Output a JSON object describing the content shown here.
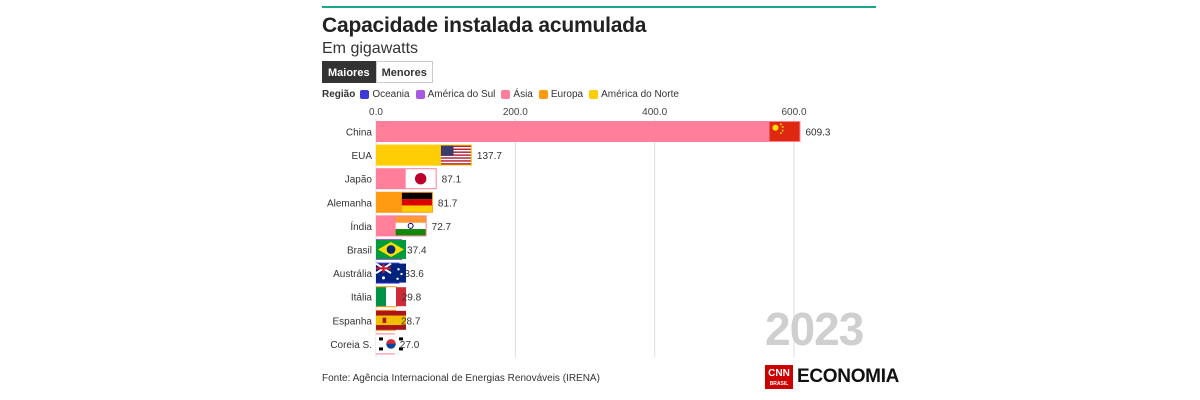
{
  "title": "Capacidade instalada acumulada",
  "subtitle": "Em gigawatts",
  "tabs": [
    {
      "label": "Maiores",
      "active": true
    },
    {
      "label": "Menores",
      "active": false
    }
  ],
  "legend": {
    "title": "Região",
    "items": [
      {
        "label": "Oceania",
        "color": "#3d3ad9"
      },
      {
        "label": "América do Sul",
        "color": "#a85be0"
      },
      {
        "label": "Ásia",
        "color": "#ff7f9a"
      },
      {
        "label": "Europa",
        "color": "#ff9a13"
      },
      {
        "label": "América do Norte",
        "color": "#ffcd03"
      }
    ]
  },
  "chart_data": {
    "type": "bar",
    "orientation": "horizontal",
    "categories": [
      "China",
      "EUA",
      "Japão",
      "Alemanha",
      "Índia",
      "Brasil",
      "Austrália",
      "Itália",
      "Espanha",
      "Coreia S."
    ],
    "values": [
      609.3,
      137.7,
      87.1,
      81.7,
      72.7,
      37.4,
      33.6,
      29.8,
      28.7,
      27.0
    ],
    "value_labels": [
      "609.3",
      "137.7",
      "87.1",
      "81.7",
      "72.7",
      "37.4",
      "33.6",
      "29.8",
      "28.7",
      "27.0"
    ],
    "regions": [
      "Ásia",
      "América do Norte",
      "Ásia",
      "Europa",
      "Ásia",
      "América do Sul",
      "Oceania",
      "Europa",
      "Europa",
      "Ásia"
    ],
    "flags": [
      "china-flag",
      "usa-flag",
      "japan-flag",
      "germany-flag",
      "india-flag",
      "brazil-flag",
      "australia-flag",
      "italy-flag",
      "spain-flag",
      "south-korea-flag"
    ],
    "xticks": [
      "0.0",
      "200.0",
      "400.0",
      "600.0"
    ],
    "xtick_values": [
      0,
      200,
      400,
      600
    ],
    "xlim": [
      0,
      620
    ],
    "grid": true,
    "year": "2023"
  },
  "source": "Fonte: Agência Internacional de Energias Renováveis (IRENA)",
  "brand": {
    "logo_text": "CNN",
    "logo_sub": "BRASIL",
    "name": "ECONOMIA"
  }
}
